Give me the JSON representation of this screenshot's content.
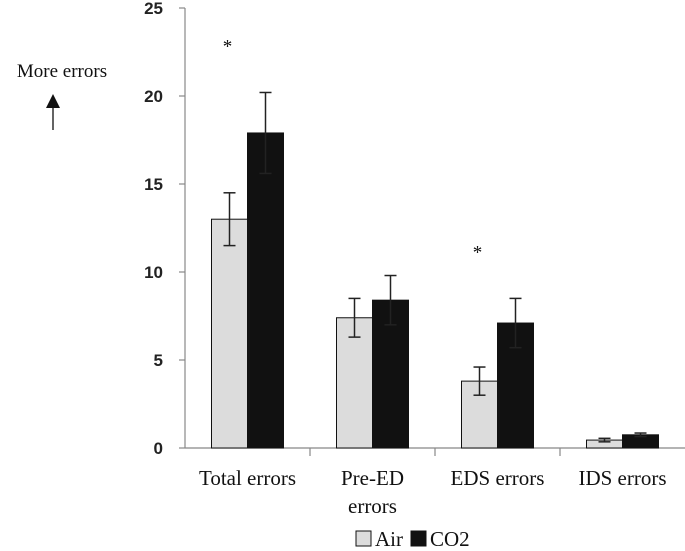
{
  "chart_data": {
    "type": "bar",
    "categories": [
      "Total errors",
      "Pre-ED\nerrors",
      "EDS errors",
      "IDS errors"
    ],
    "series": [
      {
        "name": "Air",
        "values": [
          13.0,
          7.4,
          3.8,
          0.45
        ],
        "errors": [
          1.5,
          1.1,
          0.8,
          0.1
        ],
        "color": "#dcdcdc"
      },
      {
        "name": "CO2",
        "values": [
          17.9,
          8.4,
          7.1,
          0.75
        ],
        "errors": [
          2.3,
          1.4,
          1.4,
          0.1
        ],
        "color": "#111111"
      }
    ],
    "ylim": [
      0,
      25
    ],
    "yticks": [
      0,
      5,
      10,
      15,
      20,
      25
    ],
    "significance": [
      "*",
      "",
      "*",
      ""
    ],
    "side_annotation": "More errors",
    "legend_position": "bottom-center",
    "grid": false
  }
}
